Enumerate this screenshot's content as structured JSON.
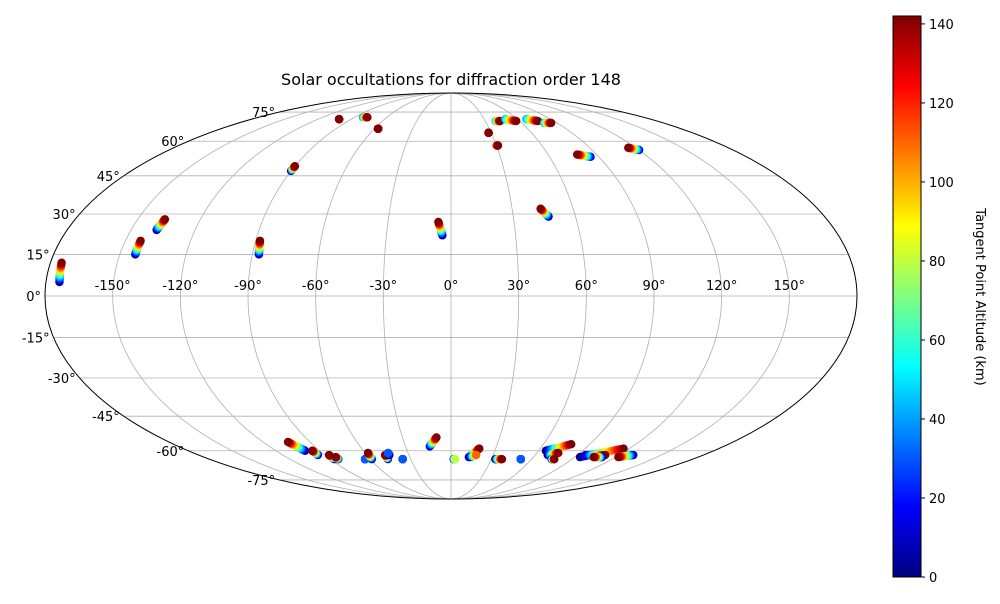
{
  "chart_data": {
    "type": "scatter",
    "title": "Solar occultations for diffraction order 148",
    "projection": "mollweide",
    "grid": true,
    "x_ticks": [
      "-150°",
      "-120°",
      "-90°",
      "-60°",
      "-30°",
      "0°",
      "30°",
      "60°",
      "90°",
      "120°",
      "150°"
    ],
    "y_ticks": [
      "75°",
      "60°",
      "45°",
      "30°",
      "15°",
      "0°",
      "-15°",
      "-30°",
      "-45°",
      "-60°",
      "-75°"
    ],
    "colorbar": {
      "label": "Tangent Point Altitude (km)",
      "range": [
        0,
        142
      ],
      "ticks": [
        "0",
        "20",
        "40",
        "60",
        "80",
        "100",
        "120",
        "140"
      ],
      "colormap": "jet"
    },
    "occultations": [
      {
        "lon_start": -174,
        "lat_start": 5,
        "lon_end": -175,
        "lat_end": 12,
        "alt_min": 0,
        "alt_max": 142
      },
      {
        "lon_start": -143,
        "lat_start": 15,
        "lon_end": -143,
        "lat_end": 20,
        "alt_min": 0,
        "alt_max": 142
      },
      {
        "lon_start": -138,
        "lat_start": 24,
        "lon_end": -137,
        "lat_end": 28,
        "alt_min": 0,
        "alt_max": 142
      },
      {
        "lon_start": -87,
        "lat_start": 15,
        "lon_end": -88,
        "lat_end": 20,
        "alt_min": 0,
        "alt_max": 142
      },
      {
        "lon_start": -4,
        "lat_start": 22,
        "lon_end": -6,
        "lat_end": 27,
        "alt_min": 0,
        "alt_max": 142
      },
      {
        "lon_start": 47,
        "lat_start": 29,
        "lon_end": 44,
        "lat_end": 32,
        "alt_min": 0,
        "alt_max": 142
      },
      {
        "lon_start": -90,
        "lat_start": 47,
        "lon_end": -90,
        "lat_end": 49,
        "alt_min": 0,
        "alt_max": 142
      },
      {
        "lon_start": -101,
        "lat_start": 71,
        "lon_end": -101,
        "lat_end": 71,
        "alt_min": 120,
        "alt_max": 142
      },
      {
        "lon_start": -82,
        "lat_start": 72,
        "lon_end": -78,
        "lat_end": 72,
        "alt_min": 30,
        "alt_max": 140
      },
      {
        "lon_start": -57,
        "lat_start": 66,
        "lon_end": -57,
        "lat_end": 66,
        "alt_min": 125,
        "alt_max": 142
      },
      {
        "lon_start": 28,
        "lat_start": 64,
        "lon_end": 28,
        "lat_end": 64,
        "alt_min": 125,
        "alt_max": 142
      },
      {
        "lon_start": 30,
        "lat_start": 58,
        "lon_end": 31,
        "lat_end": 58,
        "alt_min": 100,
        "alt_max": 142
      },
      {
        "lon_start": 39,
        "lat_start": 70,
        "lon_end": 43,
        "lat_end": 70,
        "alt_min": 40,
        "alt_max": 142
      },
      {
        "lon_start": 49,
        "lat_start": 71,
        "lon_end": 57,
        "lat_end": 70,
        "alt_min": 40,
        "alt_max": 142
      },
      {
        "lon_start": 68,
        "lat_start": 71,
        "lon_end": 76,
        "lat_end": 70,
        "alt_min": 40,
        "alt_max": 142
      },
      {
        "lon_start": 79,
        "lat_start": 69,
        "lon_end": 85,
        "lat_end": 69,
        "alt_min": 40,
        "alt_max": 142
      },
      {
        "lon_start": 85,
        "lat_start": 53,
        "lon_end": 78,
        "lat_end": 54,
        "alt_min": 10,
        "alt_max": 142
      },
      {
        "lon_start": 120,
        "lat_start": 56,
        "lon_end": 115,
        "lat_end": 57,
        "alt_min": 10,
        "alt_max": 142
      },
      {
        "lon_start": -100,
        "lat_start": -60,
        "lon_end": -104,
        "lat_end": -56,
        "alt_min": 0,
        "alt_max": 142
      },
      {
        "lon_start": -95,
        "lat_start": -62,
        "lon_end": -95,
        "lat_end": -60,
        "alt_min": 0,
        "alt_max": 142
      },
      {
        "lon_start": -87,
        "lat_start": -64,
        "lon_end": -87,
        "lat_end": -62,
        "alt_min": 0,
        "alt_max": 142
      },
      {
        "lon_start": -84,
        "lat_start": -64,
        "lon_end": -84,
        "lat_end": -63,
        "alt_min": 0,
        "alt_max": 142
      },
      {
        "lon_start": -64,
        "lat_start": -64,
        "lon_end": -64,
        "lat_end": -64,
        "alt_min": 0,
        "alt_max": 30
      },
      {
        "lon_start": -59,
        "lat_start": -64,
        "lon_end": -58,
        "lat_end": -61,
        "alt_min": 0,
        "alt_max": 142
      },
      {
        "lon_start": -47,
        "lat_start": -64,
        "lon_end": -47,
        "lat_end": -62,
        "alt_min": 0,
        "alt_max": 142
      },
      {
        "lon_start": -44,
        "lat_start": -62,
        "lon_end": -44,
        "lat_end": -61,
        "alt_min": 0,
        "alt_max": 30
      },
      {
        "lon_start": -36,
        "lat_start": -64,
        "lon_end": -36,
        "lat_end": -64,
        "alt_min": 0,
        "alt_max": 30
      },
      {
        "lon_start": -14,
        "lat_start": -58,
        "lon_end": -9,
        "lat_end": -54,
        "alt_min": 0,
        "alt_max": 142
      },
      {
        "lon_start": 2,
        "lat_start": -64,
        "lon_end": 3,
        "lat_end": -64,
        "alt_min": 0,
        "alt_max": 80
      },
      {
        "lon_start": 13,
        "lat_start": -63,
        "lon_end": 19,
        "lat_end": -59,
        "alt_min": 0,
        "alt_max": 142
      },
      {
        "lon_start": 14,
        "lat_start": -63,
        "lon_end": 18,
        "lat_end": -62,
        "alt_min": 0,
        "alt_max": 110
      },
      {
        "lon_start": 33,
        "lat_start": -64,
        "lon_end": 38,
        "lat_end": -64,
        "alt_min": 0,
        "alt_max": 142
      },
      {
        "lon_start": 52,
        "lat_start": -64,
        "lon_end": 52,
        "lat_end": -64,
        "alt_min": 0,
        "alt_max": 30
      },
      {
        "lon_start": 65,
        "lat_start": -60,
        "lon_end": 78,
        "lat_end": -57,
        "alt_min": 0,
        "alt_max": 142
      },
      {
        "lon_start": 69,
        "lat_start": -62,
        "lon_end": 75,
        "lat_end": -61,
        "alt_min": 0,
        "alt_max": 142
      },
      {
        "lon_start": 75,
        "lat_start": -64,
        "lon_end": 77,
        "lat_end": -64,
        "alt_min": 0,
        "alt_max": 142
      },
      {
        "lon_start": 94,
        "lat_start": -63,
        "lon_end": 116,
        "lat_end": -59,
        "alt_min": 0,
        "alt_max": 142
      },
      {
        "lon_start": 96,
        "lat_start": -62,
        "lon_end": 110,
        "lat_end": -62,
        "alt_min": 0,
        "alt_max": 142
      },
      {
        "lon_start": 110,
        "lat_start": -63,
        "lon_end": 104,
        "lat_end": -63,
        "alt_min": 0,
        "alt_max": 142
      },
      {
        "lon_start": 130,
        "lat_start": -62,
        "lon_end": 122,
        "lat_end": -63,
        "alt_min": 0,
        "alt_max": 142
      }
    ]
  }
}
